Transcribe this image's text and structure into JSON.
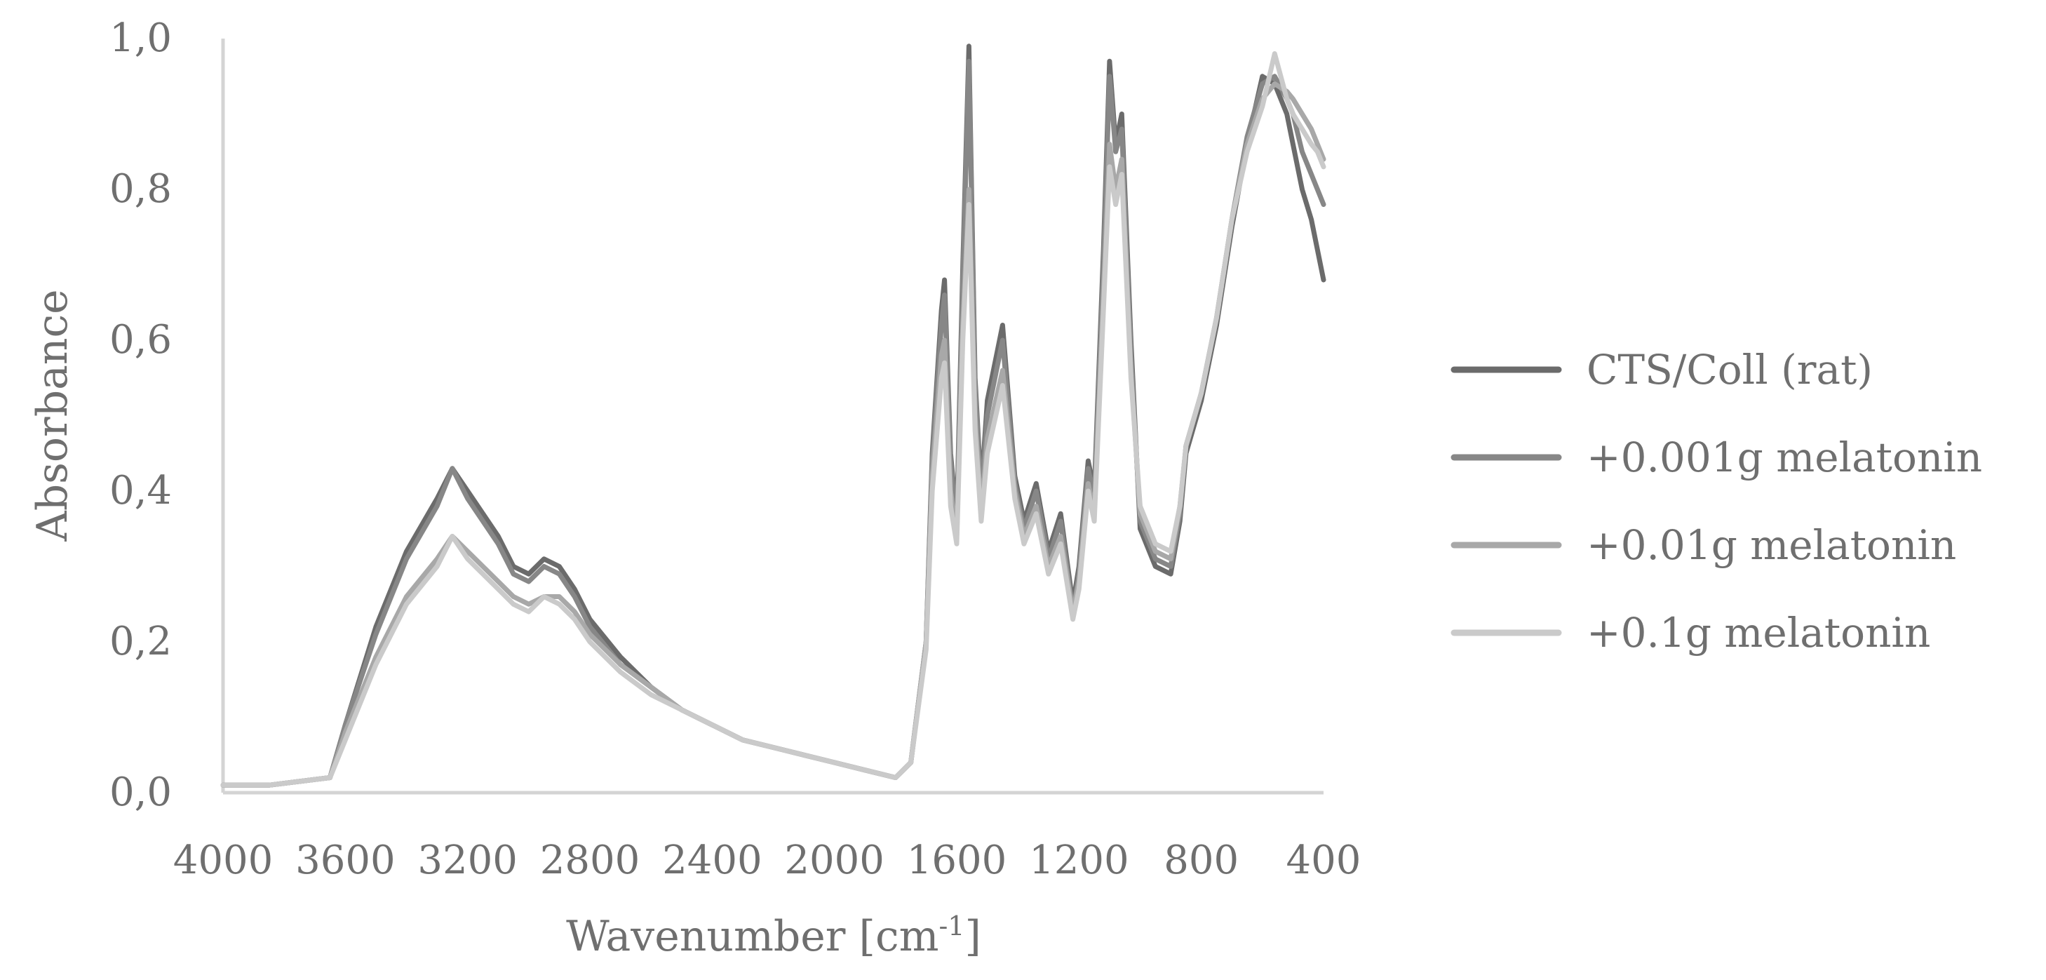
{
  "chart_data": {
    "type": "line",
    "title": "",
    "xlabel": "Wavenumber [cm",
    "xlabel_sup": "-1",
    "xlabel_close": "]",
    "ylabel": "Absorbance",
    "xlim": [
      4000,
      400
    ],
    "x_reversed": true,
    "ylim": [
      0,
      1.0
    ],
    "x_ticks": [
      4000,
      3600,
      3200,
      2800,
      2400,
      2000,
      1600,
      1200,
      800,
      400
    ],
    "x_tick_labels": [
      "4000",
      "3600",
      "3200",
      "2800",
      "2400",
      "2000",
      "1600",
      "1200",
      "800",
      "400"
    ],
    "y_ticks": [
      0,
      0.2,
      0.4,
      0.6,
      0.8,
      1.0
    ],
    "y_tick_labels": [
      "0,0",
      "0,2",
      "0,4",
      "0,6",
      "0,8",
      "1,0"
    ],
    "grid": false,
    "legend_position": "right",
    "x": [
      4000,
      3850,
      3750,
      3650,
      3600,
      3500,
      3400,
      3300,
      3250,
      3200,
      3100,
      3050,
      3000,
      2950,
      2900,
      2850,
      2800,
      2700,
      2600,
      2500,
      2400,
      2300,
      2200,
      2100,
      2000,
      1900,
      1800,
      1750,
      1700,
      1680,
      1650,
      1640,
      1620,
      1600,
      1580,
      1560,
      1540,
      1520,
      1500,
      1450,
      1410,
      1380,
      1340,
      1300,
      1260,
      1220,
      1200,
      1170,
      1150,
      1120,
      1100,
      1080,
      1060,
      1030,
      1000,
      950,
      900,
      870,
      850,
      800,
      750,
      700,
      650,
      600,
      560,
      520,
      500,
      470,
      440,
      420,
      400
    ],
    "series": [
      {
        "name": "CTS/Coll (rat)",
        "color": "#6b6b6b",
        "values": [
          0.01,
          0.01,
          0.015,
          0.02,
          0.09,
          0.22,
          0.32,
          0.39,
          0.43,
          0.4,
          0.34,
          0.3,
          0.29,
          0.31,
          0.3,
          0.27,
          0.23,
          0.18,
          0.14,
          0.11,
          0.09,
          0.07,
          0.06,
          0.05,
          0.04,
          0.03,
          0.02,
          0.04,
          0.2,
          0.45,
          0.64,
          0.68,
          0.45,
          0.36,
          0.7,
          0.99,
          0.55,
          0.4,
          0.52,
          0.62,
          0.42,
          0.36,
          0.41,
          0.32,
          0.37,
          0.25,
          0.3,
          0.44,
          0.4,
          0.72,
          0.97,
          0.86,
          0.9,
          0.6,
          0.35,
          0.3,
          0.29,
          0.36,
          0.45,
          0.52,
          0.62,
          0.75,
          0.86,
          0.95,
          0.94,
          0.9,
          0.86,
          0.8,
          0.76,
          0.72,
          0.68
        ]
      },
      {
        "name": "+0.001g melatonin",
        "color": "#878787",
        "values": [
          0.01,
          0.01,
          0.015,
          0.02,
          0.09,
          0.21,
          0.31,
          0.38,
          0.43,
          0.39,
          0.33,
          0.29,
          0.28,
          0.3,
          0.29,
          0.26,
          0.22,
          0.17,
          0.14,
          0.11,
          0.09,
          0.07,
          0.06,
          0.05,
          0.04,
          0.03,
          0.02,
          0.04,
          0.2,
          0.44,
          0.62,
          0.66,
          0.44,
          0.35,
          0.68,
          0.97,
          0.54,
          0.39,
          0.5,
          0.6,
          0.41,
          0.35,
          0.4,
          0.31,
          0.36,
          0.24,
          0.29,
          0.43,
          0.39,
          0.7,
          0.95,
          0.85,
          0.88,
          0.58,
          0.36,
          0.31,
          0.3,
          0.37,
          0.46,
          0.53,
          0.63,
          0.76,
          0.87,
          0.94,
          0.95,
          0.92,
          0.9,
          0.85,
          0.82,
          0.8,
          0.78
        ]
      },
      {
        "name": "+0.01g melatonin",
        "color": "#a8a8a8",
        "values": [
          0.01,
          0.01,
          0.015,
          0.02,
          0.08,
          0.18,
          0.26,
          0.31,
          0.34,
          0.32,
          0.28,
          0.26,
          0.25,
          0.26,
          0.26,
          0.24,
          0.21,
          0.17,
          0.14,
          0.11,
          0.09,
          0.07,
          0.06,
          0.05,
          0.04,
          0.03,
          0.02,
          0.04,
          0.2,
          0.42,
          0.58,
          0.6,
          0.4,
          0.34,
          0.62,
          0.8,
          0.5,
          0.37,
          0.47,
          0.56,
          0.4,
          0.34,
          0.38,
          0.3,
          0.34,
          0.24,
          0.28,
          0.41,
          0.37,
          0.66,
          0.86,
          0.8,
          0.84,
          0.56,
          0.37,
          0.32,
          0.31,
          0.38,
          0.46,
          0.53,
          0.63,
          0.76,
          0.86,
          0.92,
          0.94,
          0.93,
          0.92,
          0.9,
          0.88,
          0.86,
          0.84
        ]
      },
      {
        "name": "+0.1g melatonin",
        "color": "#cacaca",
        "values": [
          0.01,
          0.01,
          0.015,
          0.02,
          0.07,
          0.17,
          0.25,
          0.3,
          0.34,
          0.31,
          0.27,
          0.25,
          0.24,
          0.26,
          0.25,
          0.23,
          0.2,
          0.16,
          0.13,
          0.11,
          0.09,
          0.07,
          0.06,
          0.05,
          0.04,
          0.03,
          0.02,
          0.04,
          0.19,
          0.4,
          0.55,
          0.57,
          0.38,
          0.33,
          0.6,
          0.78,
          0.48,
          0.36,
          0.45,
          0.54,
          0.39,
          0.33,
          0.37,
          0.29,
          0.33,
          0.23,
          0.27,
          0.4,
          0.36,
          0.64,
          0.83,
          0.78,
          0.82,
          0.55,
          0.38,
          0.33,
          0.32,
          0.38,
          0.46,
          0.53,
          0.63,
          0.76,
          0.85,
          0.91,
          0.98,
          0.92,
          0.9,
          0.88,
          0.86,
          0.85,
          0.83
        ]
      }
    ]
  }
}
